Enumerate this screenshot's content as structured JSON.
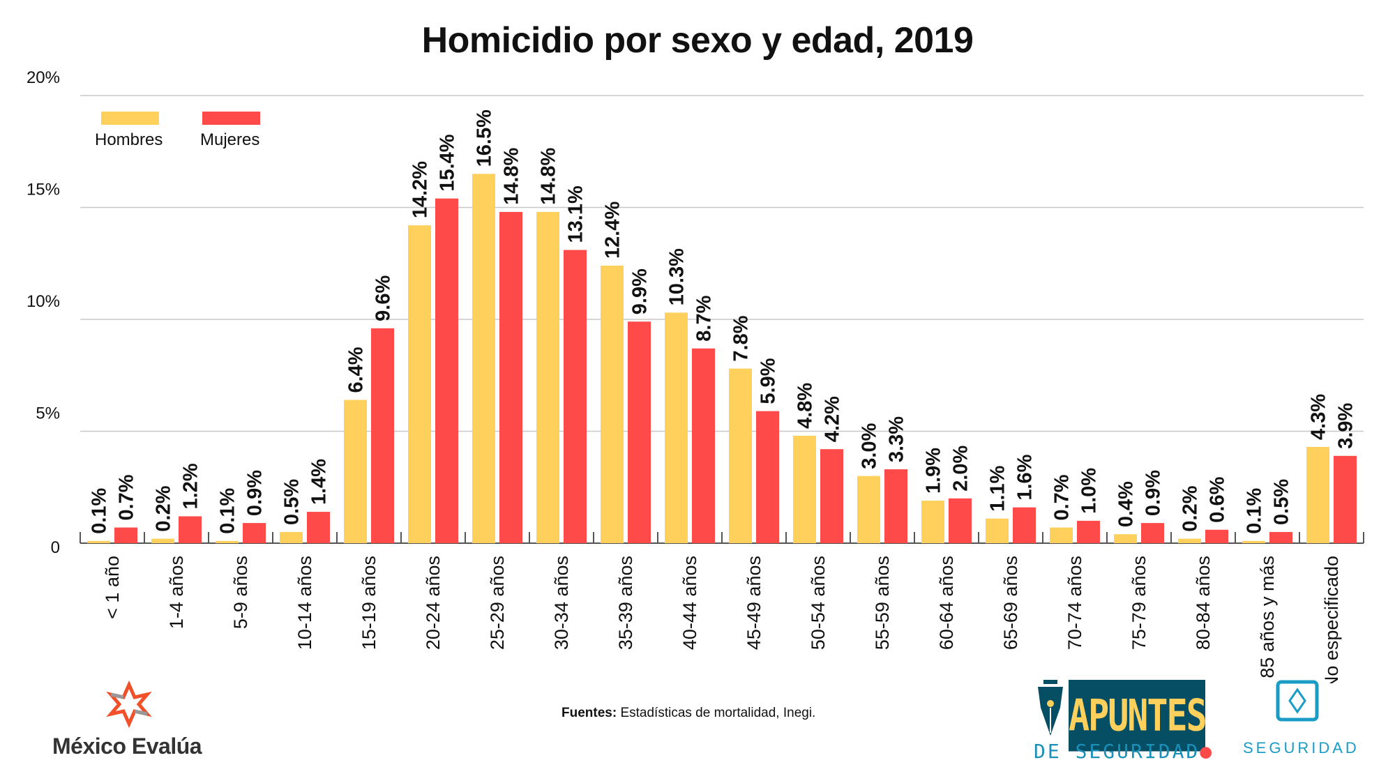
{
  "chart_data": {
    "type": "bar",
    "title": "Homicidio por sexo y edad, 2019",
    "categories": [
      "< 1 año",
      "1-4 años",
      "5-9 años",
      "10-14 años",
      "15-19 años",
      "20-24 años",
      "25-29 años",
      "30-34 años",
      "35-39 años",
      "40-44 años",
      "45-49 años",
      "50-54 años",
      "55-59 años",
      "60-64 años",
      "65-69 años",
      "70-74 años",
      "75-79 años",
      "80-84 años",
      "85 años y más",
      "No especificado"
    ],
    "series": [
      {
        "name": "Hombres",
        "color": "#FFD15C",
        "values": [
          0.1,
          0.2,
          0.1,
          0.5,
          6.4,
          14.2,
          16.5,
          14.8,
          12.4,
          10.3,
          7.8,
          4.8,
          3.0,
          1.9,
          1.1,
          0.7,
          0.4,
          0.2,
          0.1,
          4.3
        ]
      },
      {
        "name": "Mujeres",
        "color": "#FF4A4A",
        "values": [
          0.7,
          1.2,
          0.9,
          1.4,
          9.6,
          15.4,
          14.8,
          13.1,
          9.9,
          8.7,
          5.9,
          4.2,
          3.3,
          2.0,
          1.6,
          1.0,
          0.9,
          0.6,
          0.5,
          3.9
        ]
      }
    ],
    "ylim": [
      0,
      20
    ],
    "yticks": [
      0,
      5,
      10,
      15,
      20
    ],
    "ytick_labels": [
      "0",
      "5%",
      "10%",
      "15%",
      "20%"
    ],
    "value_format": "%",
    "grid": true,
    "legend_position": "top-left"
  },
  "footer": {
    "source_label": "Fuentes:",
    "source_text": "Estadísticas de mortalidad, Inegi.",
    "logo_mexico_evalua": "México Evalúa",
    "logo_apuntes": "APUNTES",
    "logo_apuntes_sub": "DE SEGURIDAD",
    "logo_seguridad": "SEGURIDAD"
  }
}
